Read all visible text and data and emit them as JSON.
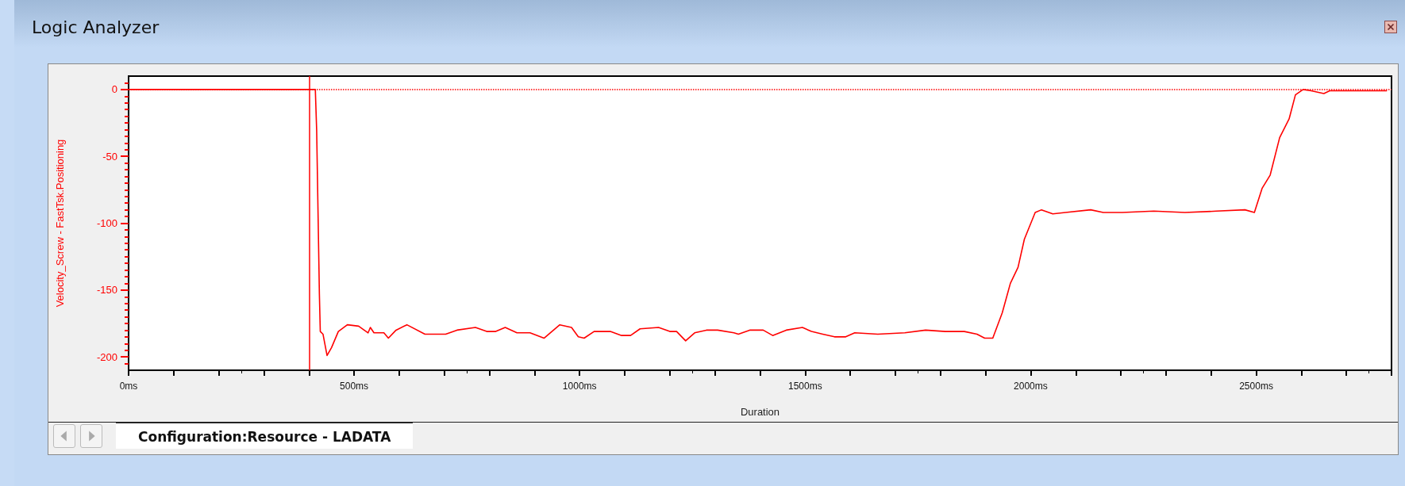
{
  "chart_data": {
    "type": "line",
    "title": "Logic Analyzer",
    "xlabel": "Duration",
    "ylabel": "Velocity_Screw - FastTsk.Positioning",
    "annotations": [
      "Configuration:Resource - LADATA"
    ],
    "xlim": [
      0,
      2800
    ],
    "ylim": [
      -210,
      10
    ],
    "xticks": [
      {
        "value": 0,
        "label": "0ms"
      },
      {
        "value": 100,
        "label": null
      },
      {
        "value": 200,
        "label": null
      },
      {
        "value": 300,
        "label": null
      },
      {
        "value": 400,
        "label": null
      },
      {
        "value": 500,
        "label": "500ms"
      },
      {
        "value": 600,
        "label": null
      },
      {
        "value": 700,
        "label": null
      },
      {
        "value": 800,
        "label": null
      },
      {
        "value": 900,
        "label": null
      },
      {
        "value": 1000,
        "label": "1000ms"
      },
      {
        "value": 1100,
        "label": null
      },
      {
        "value": 1200,
        "label": null
      },
      {
        "value": 1300,
        "label": null
      },
      {
        "value": 1400,
        "label": null
      },
      {
        "value": 1500,
        "label": "1500ms"
      },
      {
        "value": 1600,
        "label": null
      },
      {
        "value": 1700,
        "label": null
      },
      {
        "value": 1800,
        "label": null
      },
      {
        "value": 1900,
        "label": null
      },
      {
        "value": 2000,
        "label": "2000ms"
      },
      {
        "value": 2100,
        "label": null
      },
      {
        "value": 2200,
        "label": null
      },
      {
        "value": 2300,
        "label": null
      },
      {
        "value": 2400,
        "label": null
      },
      {
        "value": 2500,
        "label": "2500ms"
      },
      {
        "value": 2600,
        "label": null
      },
      {
        "value": 2700,
        "label": null
      },
      {
        "value": 2800,
        "label": null
      }
    ],
    "yticks": [
      0,
      -50,
      -100,
      -150,
      -200
    ],
    "grid": false,
    "marker": "none",
    "line_style": "solid",
    "ref_lines": [
      {
        "axis": "x",
        "value": 400,
        "color": "#ff0000",
        "line_style": "solid"
      },
      {
        "axis": "y",
        "value": 0,
        "color": "#ff0000",
        "line_style": "dotted"
      }
    ],
    "series": [
      {
        "color": "#ff0000",
        "x": [
          0,
          414,
          417,
          420,
          423,
          425,
          431,
          440,
          450,
          465,
          485,
          510,
          531,
          536,
          544,
          566,
          576,
          593,
          617,
          657,
          703,
          728,
          769,
          794,
          814,
          835,
          861,
          890,
          921,
          956,
          982,
          997,
          1010,
          1032,
          1068,
          1093,
          1113,
          1134,
          1175,
          1200,
          1215,
          1235,
          1255,
          1281,
          1306,
          1342,
          1352,
          1377,
          1407,
          1428,
          1458,
          1494,
          1514,
          1539,
          1565,
          1590,
          1610,
          1661,
          1721,
          1767,
          1811,
          1853,
          1881,
          1898,
          1916,
          1937,
          1955,
          1972,
          1986,
          2010,
          2024,
          2049,
          2077,
          2133,
          2161,
          2203,
          2273,
          2342,
          2412,
          2475,
          2496,
          2513,
          2531,
          2552,
          2573,
          2587,
          2604,
          2622,
          2650,
          2663,
          2691,
          2790
        ],
        "values": [
          0,
          0,
          -31,
          -92,
          -153,
          -181,
          -183,
          -199,
          -193,
          -181,
          -176,
          -177,
          -182,
          -178,
          -182,
          -182,
          -186,
          -180,
          -176,
          -183,
          -183,
          -180,
          -178,
          -181,
          -181,
          -178,
          -182,
          -182,
          -186,
          -176,
          -178,
          -185,
          -186,
          -181,
          -181,
          -184,
          -184,
          -179,
          -178,
          -181,
          -181,
          -188,
          -182,
          -180,
          -180,
          -182,
          -183,
          -180,
          -180,
          -184,
          -180,
          -178,
          -181,
          -183,
          -185,
          -185,
          -182,
          -183,
          -182,
          -180,
          -181,
          -181,
          -183,
          -186,
          -186,
          -167,
          -145,
          -133,
          -112,
          -92,
          -90,
          -93,
          -92,
          -90,
          -92,
          -92,
          -91,
          -92,
          -91,
          -90,
          -92,
          -74,
          -64,
          -36,
          -22,
          -4,
          0,
          -1,
          -3,
          -1,
          -1,
          -1
        ]
      }
    ]
  }
}
